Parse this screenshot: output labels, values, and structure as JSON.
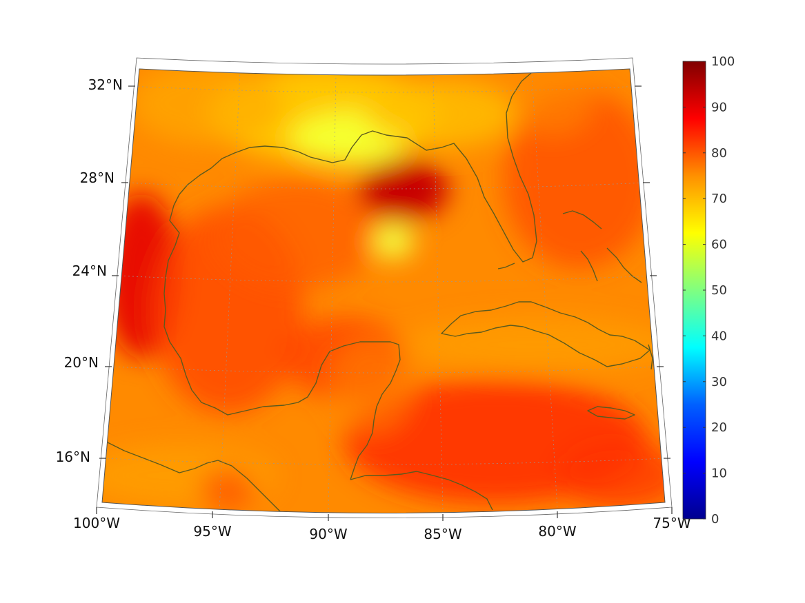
{
  "map": {
    "lat_labels": [
      "32°N",
      "28°N",
      "24°N",
      "20°N",
      "16°N"
    ],
    "lon_labels": [
      "100°W",
      "95°W",
      "90°W",
      "85°W",
      "80°W",
      "75°W"
    ],
    "extent": {
      "lon": [
        -100,
        -75
      ],
      "lat": [
        14,
        33
      ]
    },
    "gridlines": true,
    "coastline_color": "#5c5a1e"
  },
  "colorbar": {
    "colormap": "jet",
    "range": [
      0,
      100
    ],
    "ticks": [
      "0",
      "10",
      "20",
      "30",
      "40",
      "50",
      "60",
      "70",
      "80",
      "90",
      "100"
    ],
    "colors": [
      "#00008f",
      "#0000ff",
      "#0080ff",
      "#00ffff",
      "#80ff80",
      "#ffff00",
      "#ff8000",
      "#ff0000",
      "#800000"
    ]
  }
}
